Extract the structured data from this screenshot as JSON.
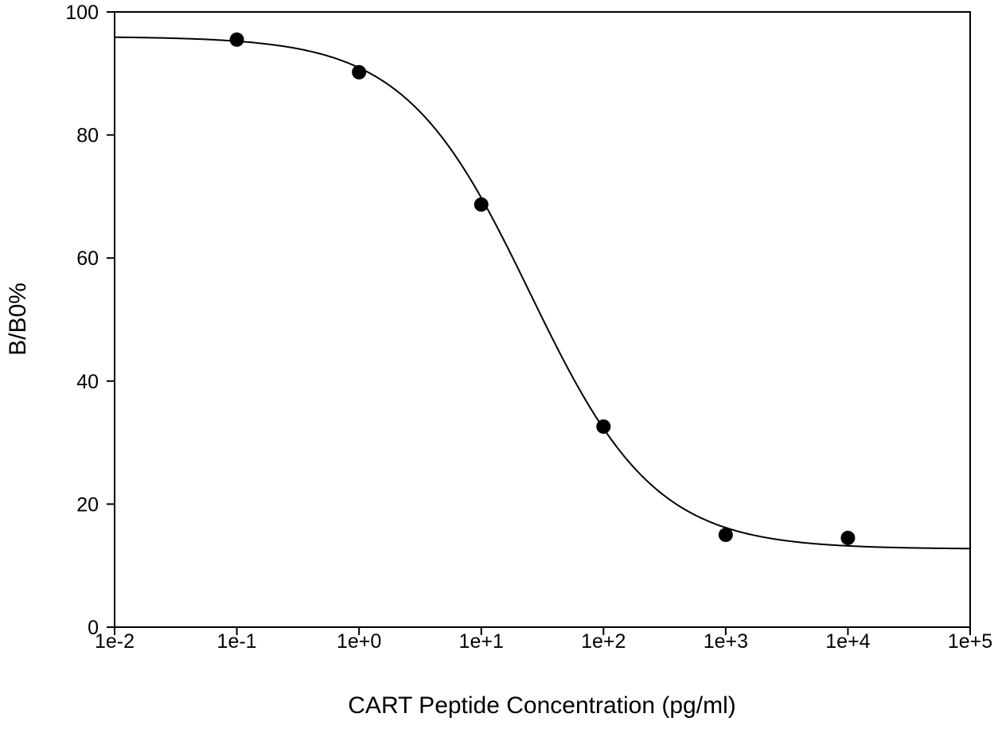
{
  "chart_data": {
    "type": "scatter",
    "title": "",
    "xlabel": "CART Peptide Concentration (pg/ml)",
    "ylabel": "B/B0%",
    "xscale": "log",
    "xlim": [
      0.01,
      100000
    ],
    "ylim": [
      0,
      100
    ],
    "x_ticks": [
      0.01,
      0.1,
      1,
      10,
      100,
      1000,
      10000,
      100000
    ],
    "x_tick_labels": [
      "1e-2",
      "1e-1",
      "1e+0",
      "1e+1",
      "1e+2",
      "1e+3",
      "1e+4",
      "1e+5"
    ],
    "y_ticks": [
      0,
      20,
      40,
      60,
      80,
      100
    ],
    "y_tick_labels": [
      "0",
      "20",
      "40",
      "60",
      "80",
      "100"
    ],
    "grid": false,
    "legend": "none",
    "series": [
      {
        "marker": "filled-circle",
        "color": "#000000",
        "x": [
          0.1,
          1,
          10,
          100,
          1000,
          10000
        ],
        "y": [
          95.5,
          90.2,
          68.7,
          32.6,
          15.0,
          14.5
        ]
      }
    ],
    "fit_curve": {
      "model": "four-parameter-logistic",
      "top": 96.0,
      "bottom": 12.7,
      "ec50": 25,
      "hill_slope": 0.85,
      "color": "#000000"
    }
  }
}
